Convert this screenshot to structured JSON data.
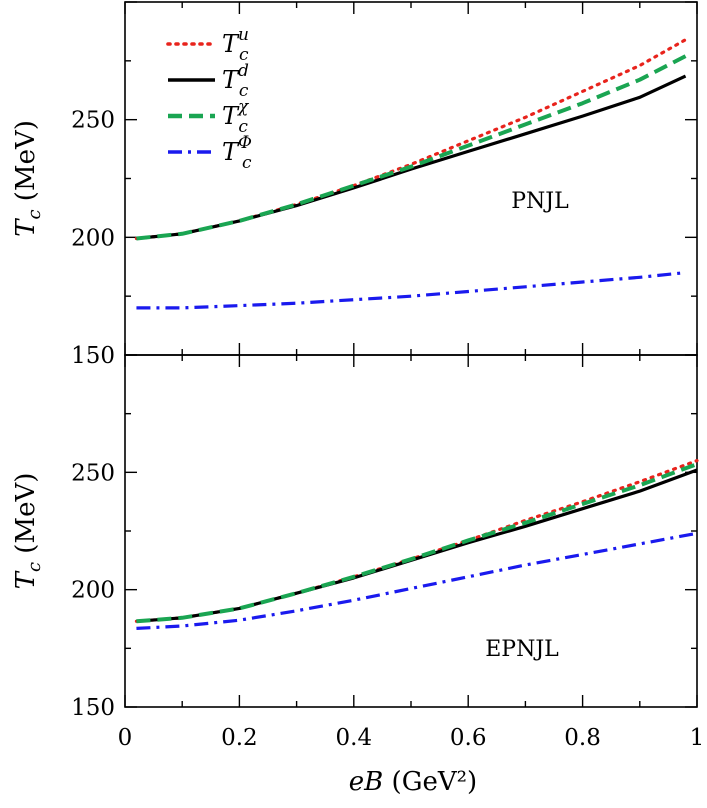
{
  "chart_data": [
    {
      "type": "line",
      "panel_label": "PNJL",
      "ylabel": "T_c (MeV)",
      "xlim": [
        0,
        1
      ],
      "ylim": [
        150,
        300
      ],
      "yticks": [
        "150",
        "200",
        "250"
      ],
      "legend": {
        "placement": "top-left",
        "entries": [
          {
            "base": "T",
            "sub": "c",
            "sup": "u",
            "color": "#e8231c",
            "style": "dotted"
          },
          {
            "base": "T",
            "sub": "c",
            "sup": "d",
            "color": "#000000",
            "style": "solid"
          },
          {
            "base": "T",
            "sub": "c",
            "sup": "χ",
            "color": "#1aa552",
            "style": "dashed"
          },
          {
            "base": "T",
            "sub": "c",
            "sup": "Φ",
            "color": "#1a1aee",
            "style": "dashdot"
          }
        ]
      },
      "x": [
        0.02,
        0.1,
        0.2,
        0.3,
        0.4,
        0.5,
        0.6,
        0.7,
        0.8,
        0.9,
        0.98
      ],
      "series": [
        {
          "key": "u",
          "color": "#e8231c",
          "style": "dotted",
          "values": [
            199.5,
            201.5,
            207,
            214,
            222,
            231,
            241,
            251,
            262,
            273,
            284
          ]
        },
        {
          "key": "d",
          "color": "#000000",
          "style": "solid",
          "values": [
            199.5,
            201.5,
            207,
            213.5,
            221,
            229,
            236.5,
            244,
            251.5,
            259.5,
            268.5
          ]
        },
        {
          "key": "chi",
          "color": "#1aa552",
          "style": "dashed",
          "values": [
            199.5,
            201.5,
            207,
            214,
            222,
            230,
            239,
            248,
            257,
            267,
            277
          ]
        },
        {
          "key": "phi",
          "color": "#1a1aee",
          "style": "dashdot",
          "values": [
            170,
            170,
            171,
            172,
            173.5,
            175,
            177,
            179,
            181,
            183,
            185
          ]
        }
      ]
    },
    {
      "type": "line",
      "panel_label": "EPNJL",
      "ylabel": "T_c (MeV)",
      "xlabel": "eB (GeV²)",
      "xlim": [
        0,
        1
      ],
      "ylim": [
        150,
        300
      ],
      "yticks": [
        "150",
        "200",
        "250"
      ],
      "xticks": [
        "0",
        "0.2",
        "0.4",
        "0.6",
        "0.8",
        "1"
      ],
      "x": [
        0.02,
        0.1,
        0.2,
        0.3,
        0.4,
        0.5,
        0.6,
        0.7,
        0.8,
        0.9,
        1.0
      ],
      "series": [
        {
          "key": "u",
          "color": "#e8231c",
          "style": "dotted",
          "values": [
            186.5,
            188,
            192,
            198.5,
            205.5,
            213,
            221,
            229.5,
            237.5,
            246,
            255
          ]
        },
        {
          "key": "d",
          "color": "#000000",
          "style": "solid",
          "values": [
            186.5,
            188,
            192,
            198.5,
            205,
            212.5,
            220,
            227,
            234.5,
            242,
            251
          ]
        },
        {
          "key": "chi",
          "color": "#1aa552",
          "style": "dashed",
          "values": [
            186.5,
            188,
            192,
            198.5,
            205.5,
            213,
            221,
            228.5,
            236.5,
            244.5,
            253.5
          ]
        },
        {
          "key": "phi",
          "color": "#1a1aee",
          "style": "dashdot",
          "values": [
            183.5,
            184.5,
            187,
            191,
            195.5,
            200.5,
            205.5,
            210.5,
            215,
            219.5,
            224
          ]
        }
      ]
    }
  ]
}
